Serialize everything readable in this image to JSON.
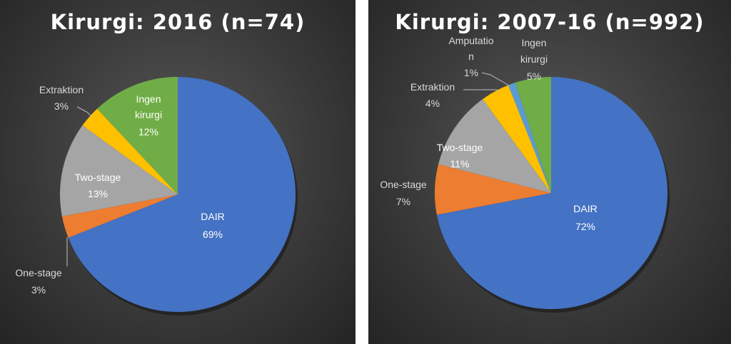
{
  "chart_data": [
    {
      "type": "pie",
      "title": "Kirurgi: 2016 (n=74)",
      "slices": [
        {
          "name": "DAIR",
          "value": 69,
          "label": "69%",
          "color": "#4472c4"
        },
        {
          "name": "One-stage",
          "value": 3,
          "label": "3%",
          "color": "#ed7d31"
        },
        {
          "name": "Two-stage",
          "value": 13,
          "label": "13%",
          "color": "#a5a5a5"
        },
        {
          "name": "Extraktion",
          "value": 3,
          "label": "3%",
          "color": "#ffc000"
        },
        {
          "name": "Ingen kirurgi",
          "value": 12,
          "label": "12%",
          "color": "#70ad47"
        }
      ]
    },
    {
      "type": "pie",
      "title": "Kirurgi: 2007-16 (n=992)",
      "slices": [
        {
          "name": "DAIR",
          "value": 72,
          "label": "72%",
          "color": "#4472c4"
        },
        {
          "name": "One-stage",
          "value": 7,
          "label": "7%",
          "color": "#ed7d31"
        },
        {
          "name": "Two-stage",
          "value": 11,
          "label": "11%",
          "color": "#a5a5a5"
        },
        {
          "name": "Extraktion",
          "value": 4,
          "label": "4%",
          "color": "#ffc000"
        },
        {
          "name": "Amputation",
          "value": 1,
          "label": "1%",
          "color": "#5b9bd5"
        },
        {
          "name": "Ingen kirurgi",
          "value": 5,
          "label": "5%",
          "color": "#70ad47"
        }
      ]
    }
  ]
}
